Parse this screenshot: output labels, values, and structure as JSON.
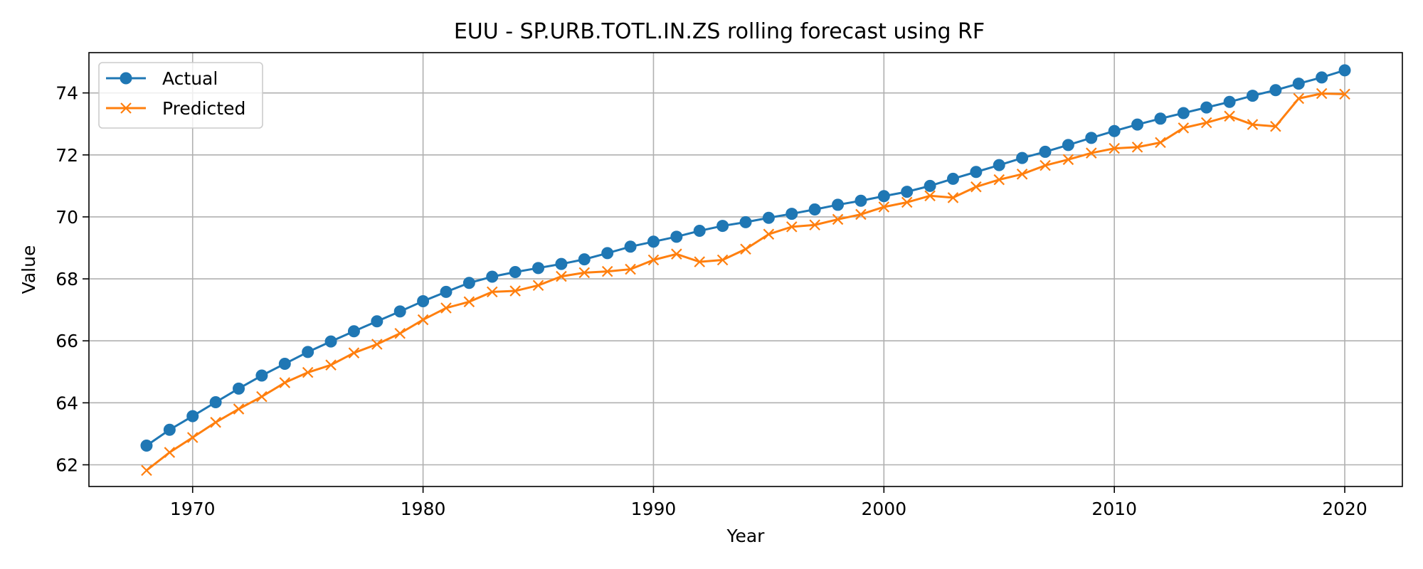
{
  "chart_data": {
    "type": "line",
    "title": "EUU - SP.URB.TOTL.IN.ZS rolling forecast using RF",
    "xlabel": "Year",
    "ylabel": "Value",
    "xlim": [
      1965.5,
      2022.5
    ],
    "ylim": [
      61.3,
      75.3
    ],
    "xticks": [
      1970,
      1980,
      1990,
      2000,
      2010,
      2020
    ],
    "yticks": [
      62,
      64,
      66,
      68,
      70,
      72,
      74
    ],
    "grid": true,
    "legend_position": "top-left",
    "x": [
      1968,
      1969,
      1970,
      1971,
      1972,
      1973,
      1974,
      1975,
      1976,
      1977,
      1978,
      1979,
      1980,
      1981,
      1982,
      1983,
      1984,
      1985,
      1986,
      1987,
      1988,
      1989,
      1990,
      1991,
      1992,
      1993,
      1994,
      1995,
      1996,
      1997,
      1998,
      1999,
      2000,
      2001,
      2002,
      2003,
      2004,
      2005,
      2006,
      2007,
      2008,
      2009,
      2010,
      2011,
      2012,
      2013,
      2014,
      2015,
      2016,
      2017,
      2018,
      2019,
      2020
    ],
    "series": [
      {
        "name": "Actual",
        "color": "#1f77b4",
        "marker": "circle",
        "values": [
          62.62,
          63.13,
          63.57,
          64.02,
          64.46,
          64.88,
          65.26,
          65.64,
          65.98,
          66.31,
          66.63,
          66.95,
          67.28,
          67.58,
          67.87,
          68.07,
          68.22,
          68.35,
          68.48,
          68.63,
          68.83,
          69.04,
          69.2,
          69.36,
          69.55,
          69.71,
          69.83,
          69.97,
          70.1,
          70.24,
          70.39,
          70.52,
          70.67,
          70.81,
          71.0,
          71.23,
          71.45,
          71.67,
          71.9,
          72.1,
          72.32,
          72.55,
          72.77,
          72.98,
          73.17,
          73.35,
          73.53,
          73.71,
          73.91,
          74.09,
          74.3,
          74.5,
          74.73
        ]
      },
      {
        "name": "Predicted",
        "color": "#ff7f0e",
        "marker": "x",
        "values": [
          61.82,
          62.4,
          62.88,
          63.37,
          63.8,
          64.2,
          64.65,
          64.98,
          65.22,
          65.61,
          65.89,
          66.24,
          66.68,
          67.06,
          67.26,
          67.58,
          67.61,
          67.79,
          68.08,
          68.2,
          68.24,
          68.31,
          68.61,
          68.8,
          68.55,
          68.61,
          68.96,
          69.44,
          69.68,
          69.74,
          69.92,
          70.08,
          70.32,
          70.47,
          70.68,
          70.62,
          70.97,
          71.2,
          71.38,
          71.66,
          71.85,
          72.06,
          72.21,
          72.25,
          72.4,
          72.87,
          73.04,
          73.25,
          72.98,
          72.92,
          73.82,
          73.98,
          73.96
        ]
      }
    ]
  }
}
